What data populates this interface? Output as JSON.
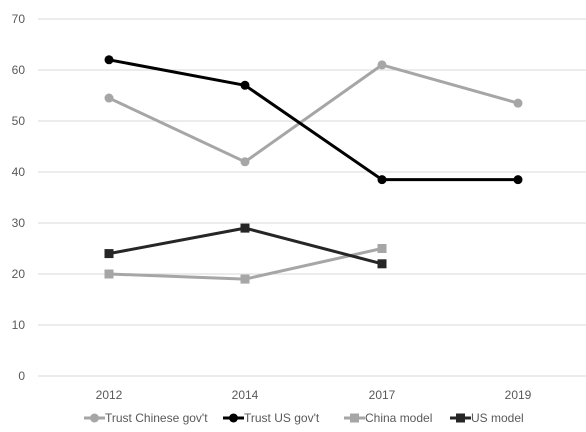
{
  "chart_data": {
    "type": "line",
    "title": "",
    "xlabel": "",
    "ylabel": "",
    "categories": [
      "2012",
      "2014",
      "2017",
      "2019"
    ],
    "ylim": [
      0,
      70
    ],
    "yticks": [
      0,
      10,
      20,
      30,
      40,
      50,
      60,
      70
    ],
    "grid": "horizontal",
    "legend_position": "bottom",
    "series": [
      {
        "name": "Trust Chinese gov't",
        "values": [
          54.5,
          42,
          61,
          53.5
        ],
        "color": "#a6a6a6",
        "marker": "circle"
      },
      {
        "name": "Trust US gov't",
        "values": [
          62,
          57,
          38.5,
          38.5
        ],
        "color": "#000000",
        "marker": "circle"
      },
      {
        "name": "China model",
        "values": [
          20,
          19,
          25,
          null
        ],
        "color": "#a6a6a6",
        "marker": "square"
      },
      {
        "name": "US model",
        "values": [
          24,
          29,
          22,
          null
        ],
        "color": "#262626",
        "marker": "square"
      }
    ]
  }
}
